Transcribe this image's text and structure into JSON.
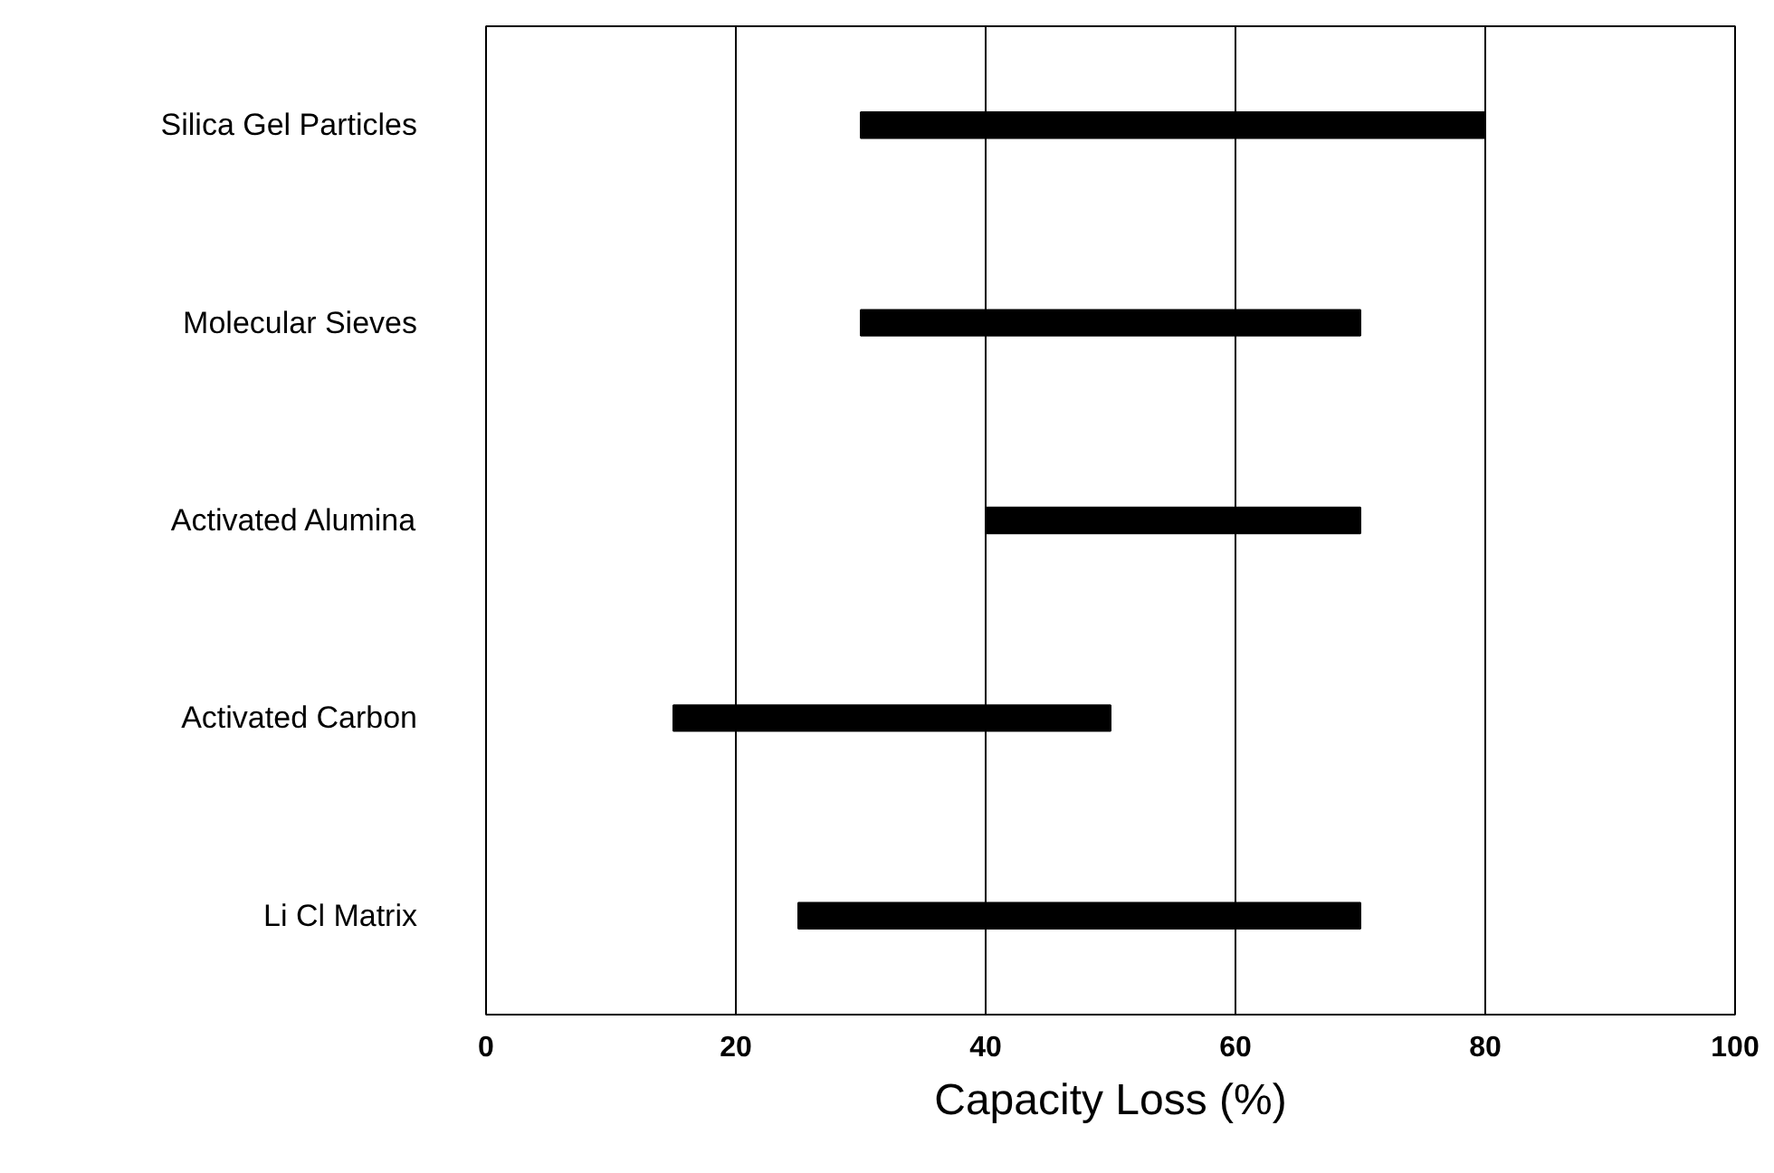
{
  "chart_data": {
    "type": "bar",
    "orientation": "horizontal",
    "xlabel": "Capacity Loss (%)",
    "categories": [
      "Silica Gel Particles",
      "Molecular Sieves",
      "Activated Alumina",
      "Activated Carbon",
      "Li Cl Matrix"
    ],
    "base": [
      30,
      30,
      40,
      15,
      25
    ],
    "values": [
      50,
      40,
      30,
      35,
      45
    ],
    "color": "#000000",
    "xlim": [
      0,
      100
    ],
    "xticks": [
      0,
      20,
      40,
      60,
      80,
      100
    ],
    "grid": "x"
  }
}
